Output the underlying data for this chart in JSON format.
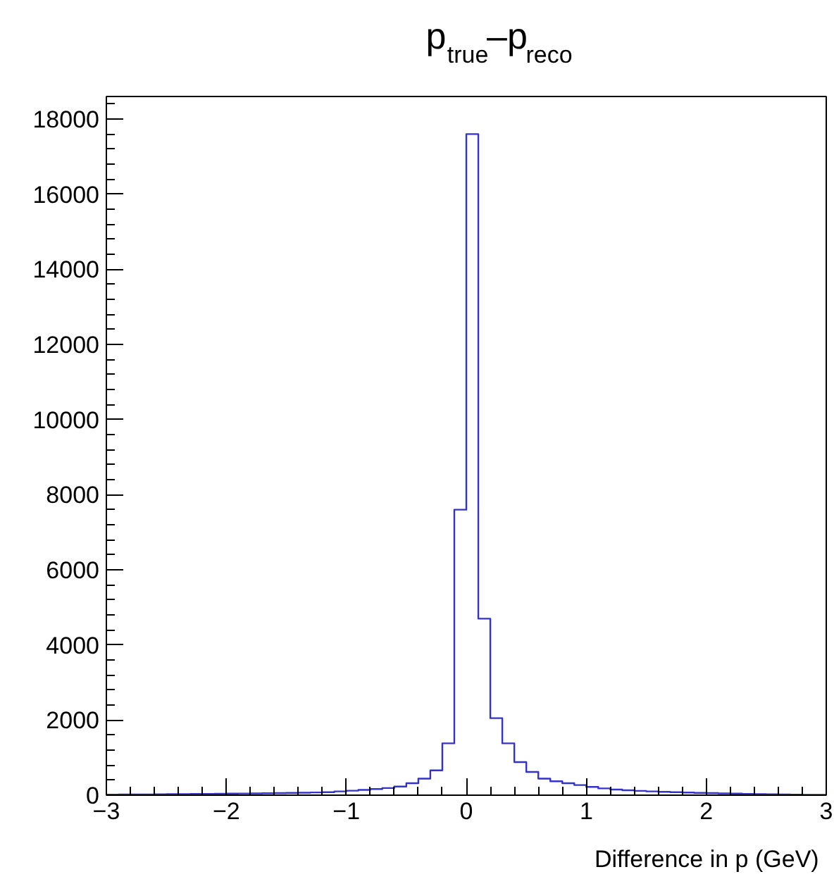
{
  "chart_data": {
    "type": "histogram",
    "title": "p$_{true}$–p$_{reco}$",
    "xlabel": "Difference in p (GeV)",
    "bins": [
      -3.0,
      -2.9,
      -2.8,
      -2.7,
      -2.6,
      -2.5,
      -2.4,
      -2.3,
      -2.2,
      -2.1,
      -2.0,
      -1.9,
      -1.8,
      -1.7,
      -1.6,
      -1.5,
      -1.4,
      -1.3,
      -1.2,
      -1.1,
      -1.0,
      -0.9,
      -0.8,
      -0.7,
      -0.6,
      -0.5,
      -0.4,
      -0.3,
      -0.2,
      -0.1,
      0.0,
      0.1,
      0.2,
      0.3,
      0.4,
      0.5,
      0.6,
      0.7,
      0.8,
      0.9,
      1.0,
      1.1,
      1.2,
      1.3,
      1.4,
      1.5,
      1.6,
      1.7,
      1.8,
      1.9,
      2.0,
      2.1,
      2.2,
      2.3,
      2.4,
      2.5,
      2.6,
      2.7,
      2.8,
      2.9,
      3.0
    ],
    "values": [
      15,
      18,
      20,
      22,
      25,
      28,
      30,
      32,
      35,
      38,
      42,
      45,
      48,
      52,
      56,
      60,
      65,
      72,
      80,
      100,
      120,
      140,
      165,
      190,
      230,
      320,
      440,
      660,
      1380,
      7600,
      17600,
      4700,
      2050,
      1380,
      880,
      620,
      440,
      370,
      320,
      270,
      220,
      180,
      150,
      130,
      115,
      100,
      90,
      80,
      70,
      62,
      55,
      48,
      42,
      36,
      30,
      25,
      20,
      16,
      12,
      10
    ],
    "color": "#3333cc",
    "xlim": [
      -3,
      3
    ],
    "ylim": [
      0,
      18600
    ],
    "xticks": [
      {
        "value": -3,
        "label": "−3"
      },
      {
        "value": -2,
        "label": "−2"
      },
      {
        "value": -1,
        "label": "−1"
      },
      0,
      1,
      2,
      3
    ],
    "yticks": [
      0,
      2000,
      4000,
      6000,
      8000,
      10000,
      12000,
      14000,
      16000,
      18000
    ],
    "grid": false
  }
}
